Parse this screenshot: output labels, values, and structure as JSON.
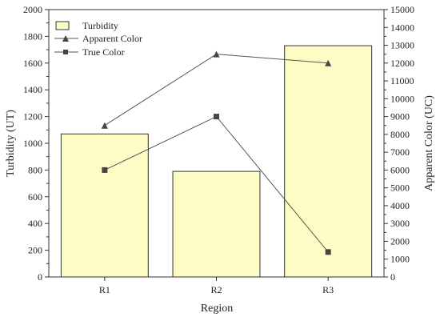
{
  "chart_data": {
    "type": "bar",
    "categories": [
      "R1",
      "R2",
      "R3"
    ],
    "xlabel": "Region",
    "series": [
      {
        "name": "Turbidity",
        "type": "bar",
        "axis": "left",
        "values": [
          1070,
          790,
          1730
        ],
        "color": "#fcfcc4"
      },
      {
        "name": "Apparent Color",
        "type": "line",
        "axis": "right",
        "marker": "triangle",
        "values": [
          8500,
          12500,
          12000
        ],
        "color": "#555555"
      },
      {
        "name": "True Color",
        "type": "line",
        "axis": "right",
        "marker": "square",
        "values": [
          6000,
          9000,
          1400
        ],
        "color": "#555555"
      }
    ],
    "y_left": {
      "label": "Turbidity (UT)",
      "lim": [
        0,
        2000
      ],
      "ticks": [
        "0",
        "200",
        "400",
        "600",
        "800",
        "1000",
        "1200",
        "1400",
        "1600",
        "1800",
        "2000"
      ]
    },
    "y_right": {
      "label": "Apparent Color (UC)",
      "lim": [
        0,
        15000
      ],
      "ticks": [
        "0",
        "1000",
        "2000",
        "3000",
        "4000",
        "5000",
        "6000",
        "7000",
        "8000",
        "9000",
        "10000",
        "11000",
        "12000",
        "13000",
        "14000",
        "15000"
      ]
    },
    "legend_position": "top-left",
    "grid": false
  }
}
